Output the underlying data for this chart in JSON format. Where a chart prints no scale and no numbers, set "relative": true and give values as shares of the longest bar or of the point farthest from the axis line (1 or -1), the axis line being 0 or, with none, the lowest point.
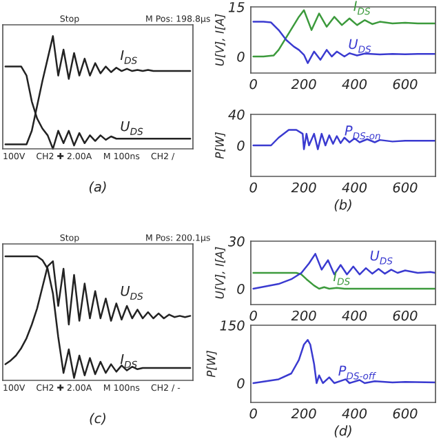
{
  "chart_data": [
    {
      "type": "line",
      "relative": true,
      "categories": [
        null,
        null,
        null,
        null,
        null,
        null,
        null,
        null,
        null,
        null,
        null,
        null,
        null,
        null,
        null,
        null,
        null,
        null,
        null,
        null,
        null,
        null,
        null,
        null,
        null,
        null,
        null,
        null,
        null,
        null,
        null,
        null,
        null,
        null,
        null,
        null
      ],
      "series": [
        {
          "name": "I$_{DS}$",
          "color": "#222222",
          "values": [
            0.04,
            0.04,
            0.04,
            0.04,
            0.04,
            0.16,
            0.38,
            0.6,
            0.8,
            1.0,
            0.65,
            0.88,
            0.62,
            0.85,
            0.65,
            0.8,
            0.65,
            0.76,
            0.67,
            0.73,
            0.68,
            0.72,
            0.69,
            0.71,
            0.69,
            0.7,
            0.69,
            0.7,
            0.69,
            0.69,
            0.69,
            0.69,
            0.69,
            0.69,
            0.69,
            0.69
          ]
        },
        {
          "name": "U$_{DS}$",
          "color": "#222222",
          "values": [
            0.73,
            0.73,
            0.73,
            0.73,
            0.65,
            0.42,
            0.27,
            0.18,
            0.12,
            0.0,
            0.16,
            0.05,
            0.16,
            0.03,
            0.14,
            0.05,
            0.12,
            0.07,
            0.12,
            0.08,
            0.11,
            0.09,
            0.09,
            0.09,
            0.09,
            0.09,
            0.09,
            0.09,
            0.09,
            0.09,
            0.09,
            0.09,
            0.09,
            0.09,
            0.09,
            0.09
          ]
        }
      ],
      "annotations": [
        "Stop",
        "M Pos: 198.8µs",
        "100V",
        "CH2 ✚ 2.00A",
        "M 100ns",
        "CH2 /",
        "(a)"
      ]
    },
    {
      "type": "line",
      "xlim": [
        -10,
        720
      ],
      "ylim": [
        -5,
        15
      ],
      "xticks": [
        0,
        200,
        400,
        600
      ],
      "yticks": [
        0,
        15
      ],
      "ylabel": "U[V], I[A]",
      "series": [
        {
          "name": "I$_{DS}$",
          "color": "#3c9a3c",
          "x": [
            0,
            40,
            80,
            100,
            120,
            140,
            160,
            180,
            200,
            230,
            260,
            290,
            320,
            350,
            380,
            410,
            440,
            470,
            500,
            550,
            600,
            650,
            700,
            720
          ],
          "values": [
            0,
            0,
            0.3,
            2,
            4.5,
            7,
            9.5,
            12,
            14,
            8,
            13,
            9,
            12,
            9.5,
            11.5,
            9.5,
            11,
            9.8,
            10.5,
            10,
            10.2,
            10,
            10,
            10
          ]
        },
        {
          "name": "U$_{DS}$",
          "color": "#3a3ad0",
          "x": [
            0,
            40,
            70,
            100,
            130,
            160,
            180,
            200,
            215,
            240,
            265,
            290,
            310,
            330,
            360,
            380,
            410,
            440,
            500,
            550,
            600,
            650,
            700,
            720
          ],
          "values": [
            10.5,
            10.5,
            10.3,
            8,
            5,
            3,
            2,
            0.5,
            -2,
            1.5,
            -1,
            2,
            0,
            1.5,
            0,
            1,
            0.3,
            0.9,
            0.6,
            0.8,
            0.7,
            0.8,
            0.8,
            0.8
          ]
        }
      ]
    },
    {
      "type": "line",
      "xlim": [
        -10,
        720
      ],
      "ylim": [
        -40,
        40
      ],
      "xticks": [
        0,
        200,
        400,
        600
      ],
      "yticks": [
        0,
        40
      ],
      "ylabel": "P[W]",
      "series": [
        {
          "name": "P$_{DS-on}$",
          "color": "#3a3ad0",
          "x": [
            0,
            40,
            70,
            100,
            140,
            170,
            195,
            200,
            210,
            220,
            240,
            255,
            270,
            285,
            300,
            315,
            330,
            345,
            360,
            380,
            400,
            420,
            450,
            480,
            500,
            550,
            600,
            650,
            700,
            720
          ],
          "values": [
            0,
            0,
            0,
            10,
            20,
            20,
            15,
            -5,
            15,
            0,
            15,
            -5,
            15,
            0,
            13,
            2,
            12,
            3,
            10,
            4,
            9,
            4,
            8,
            4,
            7,
            5,
            6,
            6,
            6,
            6
          ]
        }
      ],
      "annotations": [
        "(b)"
      ]
    },
    {
      "type": "line",
      "relative": true,
      "categories": [
        null,
        null,
        null,
        null,
        null,
        null,
        null,
        null,
        null,
        null,
        null,
        null,
        null,
        null,
        null,
        null,
        null,
        null,
        null,
        null,
        null,
        null,
        null,
        null,
        null,
        null,
        null,
        null,
        null,
        null,
        null,
        null,
        null,
        null,
        null,
        null
      ],
      "series": [
        {
          "name": "I$_{DS}$",
          "color": "#222222",
          "values": [
            1.0,
            1.0,
            1.0,
            1.0,
            1.0,
            1.0,
            1.0,
            0.97,
            0.9,
            0.7,
            0.35,
            0.06,
            0.25,
            0.02,
            0.2,
            0.04,
            0.18,
            0.05,
            0.15,
            0.06,
            0.13,
            0.07,
            0.12,
            0.08,
            0.11,
            0.09,
            0.1,
            0.1,
            0.1,
            0.1,
            0.1,
            0.1,
            0.1,
            0.1,
            0.1,
            0.1
          ]
        },
        {
          "name": "U$_{DS}$",
          "color": "#222222",
          "values": [
            0.13,
            0.16,
            0.2,
            0.26,
            0.34,
            0.45,
            0.58,
            0.75,
            0.92,
            0.96,
            0.6,
            0.9,
            0.45,
            0.85,
            0.48,
            0.78,
            0.5,
            0.72,
            0.5,
            0.66,
            0.48,
            0.62,
            0.49,
            0.6,
            0.5,
            0.57,
            0.5,
            0.55,
            0.5,
            0.54,
            0.5,
            0.53,
            0.51,
            0.52,
            0.51,
            0.52
          ]
        }
      ],
      "annotations": [
        "Stop",
        "M Pos: 200.1µs",
        "100V",
        "CH2 ✚ 2.00A",
        "M 100ns",
        "CH2 / -",
        "(c)"
      ]
    },
    {
      "type": "line",
      "xlim": [
        -10,
        720
      ],
      "ylim": [
        -10,
        30
      ],
      "xticks": [
        0,
        200,
        400,
        600
      ],
      "yticks": [
        0,
        30
      ],
      "ylabel": "U[V], I[A]",
      "series": [
        {
          "name": "I$_{DS}$",
          "color": "#3c9a3c",
          "x": [
            0,
            100,
            170,
            190,
            210,
            240,
            260,
            280,
            300,
            330,
            360,
            400,
            500,
            600,
            720
          ],
          "values": [
            10,
            10,
            10,
            9,
            6,
            2,
            0,
            1,
            0,
            0.5,
            0,
            0,
            0,
            0,
            0
          ]
        },
        {
          "name": "U$_{DS}$",
          "color": "#3a3ad0",
          "x": [
            0,
            100,
            150,
            190,
            220,
            245,
            270,
            295,
            320,
            345,
            370,
            395,
            420,
            445,
            470,
            495,
            520,
            545,
            570,
            600,
            650,
            700,
            720
          ],
          "values": [
            0,
            3,
            6,
            10,
            16,
            22,
            12,
            18,
            9,
            15,
            9,
            14,
            9,
            13,
            9.5,
            12.5,
            9.5,
            12,
            10,
            11.5,
            10,
            10.5,
            10
          ]
        }
      ]
    },
    {
      "type": "line",
      "xlim": [
        -10,
        720
      ],
      "ylim": [
        -50,
        150
      ],
      "xticks": [
        0,
        200,
        400,
        600
      ],
      "yticks": [
        0,
        150
      ],
      "ylabel": "P[W]",
      "series": [
        {
          "name": "P$_{DS-off}$",
          "color": "#3a3ad0",
          "x": [
            0,
            100,
            150,
            180,
            200,
            215,
            225,
            240,
            250,
            260,
            275,
            300,
            320,
            365,
            380,
            420,
            440,
            480,
            550,
            600,
            720
          ],
          "values": [
            0,
            10,
            25,
            60,
            100,
            112,
            100,
            50,
            0,
            20,
            0,
            15,
            0,
            10,
            0,
            8,
            0,
            5,
            2,
            3,
            2
          ]
        }
      ],
      "annotations": [
        "(d)"
      ]
    }
  ]
}
